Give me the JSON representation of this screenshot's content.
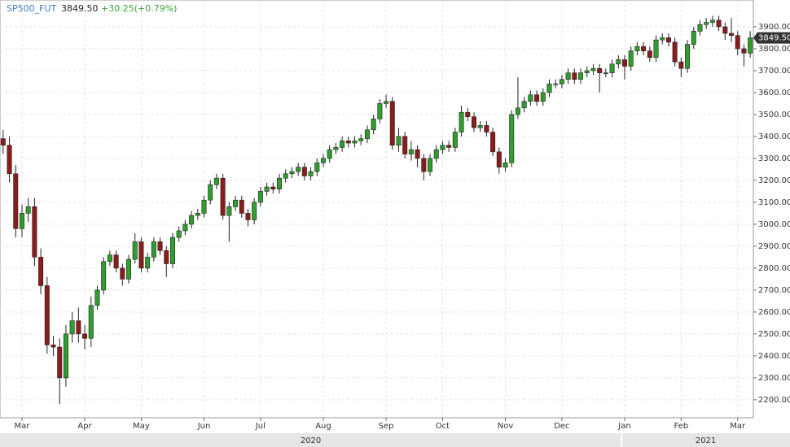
{
  "chart_data": {
    "type": "candlestick",
    "symbol": "SP500_FUT",
    "last_price": {
      "value": 3849.5,
      "label": "3849.50"
    },
    "change": "+30.25(+0.79%)",
    "up_color": "#2f9e2f",
    "down_color": "#8b1c1c",
    "grid": true,
    "ylim": [
      2118,
      4022
    ],
    "yticks": [
      {
        "value": 2200,
        "label": "2200.00"
      },
      {
        "value": 2300,
        "label": "2300.00"
      },
      {
        "value": 2400,
        "label": "2400.00"
      },
      {
        "value": 2500,
        "label": "2500.00"
      },
      {
        "value": 2600,
        "label": "2600.00"
      },
      {
        "value": 2700,
        "label": "2700.00"
      },
      {
        "value": 2800,
        "label": "2800.00"
      },
      {
        "value": 2900,
        "label": "2900.00"
      },
      {
        "value": 3000,
        "label": "3000.00"
      },
      {
        "value": 3100,
        "label": "3100.00"
      },
      {
        "value": 3200,
        "label": "3200.00"
      },
      {
        "value": 3300,
        "label": "3300.00"
      },
      {
        "value": 3400,
        "label": "3400.00"
      },
      {
        "value": 3500,
        "label": "3500.00"
      },
      {
        "value": 3600,
        "label": "3600.00"
      },
      {
        "value": 3700,
        "label": "3700.00"
      },
      {
        "value": 3800,
        "label": "3800.00"
      },
      {
        "value": 3900,
        "label": "3900.00"
      }
    ],
    "x_groups": [
      {
        "label": "2020",
        "from": 0
      },
      {
        "label": "2021",
        "from": 99
      }
    ],
    "categories": [
      null,
      null,
      null,
      "Mar",
      null,
      null,
      null,
      null,
      null,
      null,
      null,
      null,
      null,
      "Apr",
      null,
      null,
      null,
      null,
      null,
      null,
      null,
      null,
      "May",
      null,
      null,
      null,
      null,
      null,
      null,
      null,
      null,
      null,
      "Jun",
      null,
      null,
      null,
      null,
      null,
      null,
      null,
      null,
      "Jul",
      null,
      null,
      null,
      null,
      null,
      null,
      null,
      null,
      null,
      "Aug",
      null,
      null,
      null,
      null,
      null,
      null,
      null,
      null,
      null,
      "Sep",
      null,
      null,
      null,
      null,
      null,
      null,
      null,
      null,
      "Oct",
      null,
      null,
      null,
      null,
      null,
      null,
      null,
      null,
      null,
      "Nov",
      null,
      null,
      null,
      null,
      null,
      null,
      null,
      null,
      "Dec",
      null,
      null,
      null,
      null,
      null,
      null,
      null,
      null,
      null,
      "Jan",
      null,
      null,
      null,
      null,
      null,
      null,
      null,
      null,
      "Feb",
      null,
      null,
      null,
      null,
      null,
      null,
      null,
      null,
      "Mar",
      null,
      null
    ],
    "open": [
      3390,
      3360,
      3230,
      2980,
      3050,
      3080,
      2850,
      2720,
      2450,
      2440,
      2300,
      2500,
      2560,
      2500,
      2480,
      2630,
      2700,
      2830,
      2860,
      2800,
      2750,
      2840,
      2920,
      2800,
      2850,
      2920,
      2880,
      2820,
      2940,
      2970,
      3000,
      3040,
      3050,
      3110,
      3180,
      3210,
      3040,
      3080,
      3110,
      3050,
      3020,
      3100,
      3150,
      3170,
      3160,
      3210,
      3230,
      3240,
      3260,
      3220,
      3240,
      3280,
      3300,
      3340,
      3350,
      3380,
      3370,
      3380,
      3390,
      3430,
      3480,
      3550,
      3560,
      3360,
      3400,
      3320,
      3340,
      3300,
      3240,
      3300,
      3340,
      3360,
      3350,
      3420,
      3510,
      3490,
      3440,
      3450,
      3420,
      3330,
      3260,
      3280,
      3500,
      3530,
      3560,
      3590,
      3560,
      3600,
      3640,
      3640,
      3660,
      3690,
      3660,
      3690,
      3700,
      3710,
      3690,
      3690,
      3730,
      3750,
      3720,
      3790,
      3810,
      3790,
      3760,
      3840,
      3850,
      3830,
      3740,
      3710,
      3820,
      3880,
      3910,
      3920,
      3930,
      3900,
      3870,
      3860,
      3800,
      3780
    ],
    "high": [
      3430,
      3400,
      3270,
      3090,
      3120,
      3120,
      2890,
      2760,
      2490,
      2480,
      2540,
      2600,
      2620,
      2540,
      2670,
      2720,
      2850,
      2880,
      2880,
      2820,
      2860,
      2960,
      2940,
      2870,
      2940,
      2940,
      2900,
      2960,
      2990,
      3020,
      3060,
      3070,
      3130,
      3200,
      3230,
      3230,
      3100,
      3130,
      3130,
      3070,
      3120,
      3170,
      3190,
      3190,
      3230,
      3250,
      3260,
      3280,
      3280,
      3260,
      3300,
      3320,
      3360,
      3370,
      3400,
      3400,
      3400,
      3410,
      3450,
      3500,
      3570,
      3590,
      3580,
      3440,
      3420,
      3380,
      3360,
      3320,
      3320,
      3360,
      3380,
      3380,
      3440,
      3540,
      3530,
      3510,
      3470,
      3470,
      3440,
      3350,
      3300,
      3520,
      3670,
      3580,
      3610,
      3610,
      3620,
      3660,
      3660,
      3680,
      3710,
      3710,
      3710,
      3720,
      3730,
      3730,
      3710,
      3750,
      3770,
      3770,
      3810,
      3830,
      3830,
      3810,
      3860,
      3870,
      3870,
      3850,
      3760,
      3840,
      3900,
      3930,
      3940,
      3950,
      3950,
      3920,
      3940,
      3880,
      3820,
      3880
    ],
    "low": [
      3320,
      3190,
      2940,
      2940,
      3010,
      2810,
      2680,
      2410,
      2400,
      2180,
      2260,
      2460,
      2460,
      2430,
      2440,
      2610,
      2680,
      2810,
      2780,
      2720,
      2730,
      2820,
      2780,
      2780,
      2830,
      2860,
      2760,
      2800,
      2920,
      2950,
      2980,
      3020,
      3030,
      3090,
      3160,
      3020,
      2920,
      3060,
      3030,
      2990,
      3000,
      3080,
      3130,
      3140,
      3140,
      3190,
      3210,
      3220,
      3200,
      3200,
      3220,
      3260,
      3280,
      3320,
      3330,
      3350,
      3350,
      3360,
      3370,
      3410,
      3460,
      3530,
      3340,
      3330,
      3300,
      3290,
      3260,
      3200,
      3220,
      3280,
      3320,
      3330,
      3330,
      3400,
      3470,
      3420,
      3420,
      3400,
      3310,
      3230,
      3240,
      3260,
      3480,
      3510,
      3540,
      3540,
      3540,
      3580,
      3620,
      3620,
      3640,
      3640,
      3640,
      3670,
      3680,
      3600,
      3670,
      3670,
      3710,
      3660,
      3700,
      3770,
      3770,
      3740,
      3740,
      3820,
      3810,
      3720,
      3670,
      3690,
      3800,
      3860,
      3890,
      3900,
      3880,
      3840,
      3830,
      3770,
      3720,
      3760
    ],
    "close": [
      3360,
      3230,
      2980,
      3050,
      3080,
      2850,
      2720,
      2450,
      2440,
      2300,
      2500,
      2560,
      2500,
      2480,
      2630,
      2700,
      2830,
      2860,
      2800,
      2750,
      2840,
      2920,
      2800,
      2850,
      2920,
      2880,
      2820,
      2940,
      2970,
      3000,
      3040,
      3050,
      3110,
      3180,
      3210,
      3040,
      3080,
      3110,
      3050,
      3020,
      3100,
      3150,
      3170,
      3160,
      3210,
      3230,
      3240,
      3260,
      3220,
      3240,
      3280,
      3300,
      3340,
      3350,
      3380,
      3370,
      3380,
      3390,
      3430,
      3480,
      3550,
      3560,
      3360,
      3400,
      3320,
      3340,
      3300,
      3240,
      3300,
      3340,
      3360,
      3350,
      3420,
      3510,
      3490,
      3440,
      3450,
      3420,
      3330,
      3260,
      3280,
      3500,
      3530,
      3560,
      3590,
      3560,
      3600,
      3640,
      3640,
      3660,
      3690,
      3660,
      3690,
      3700,
      3710,
      3690,
      3690,
      3730,
      3750,
      3720,
      3790,
      3810,
      3790,
      3760,
      3840,
      3850,
      3830,
      3740,
      3710,
      3820,
      3880,
      3910,
      3920,
      3930,
      3900,
      3870,
      3860,
      3800,
      3780,
      3849.5
    ]
  }
}
